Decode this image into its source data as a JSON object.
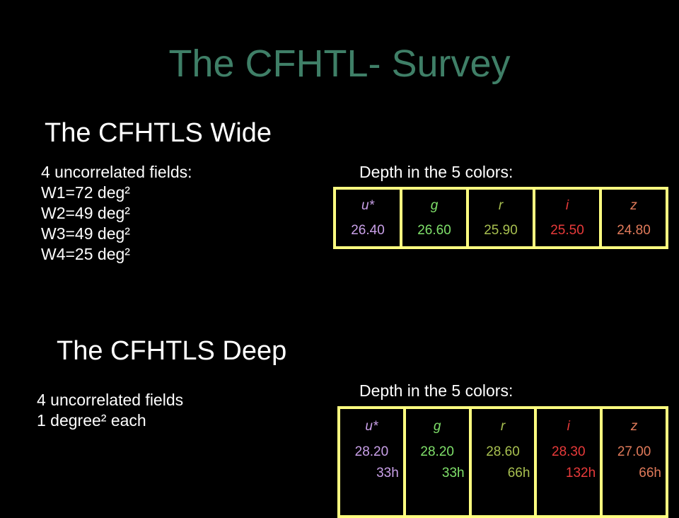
{
  "title": "The CFHTL- Survey",
  "wide": {
    "heading": "The CFHTLS Wide",
    "fields_label": "4 uncorrelated fields:",
    "fields": [
      "W1=72 deg²",
      "W2=49 deg²",
      "W3=49 deg²",
      "W4=25 deg²"
    ],
    "depth_label": "Depth in the 5 colors:",
    "bands": [
      {
        "name": "u*",
        "depth": "26.40",
        "color": "#c9a0e8"
      },
      {
        "name": "g",
        "depth": "26.60",
        "color": "#7fe06a"
      },
      {
        "name": "r",
        "depth": "25.90",
        "color": "#a8c050"
      },
      {
        "name": "i",
        "depth": "25.50",
        "color": "#e83a3a"
      },
      {
        "name": "z",
        "depth": "24.80",
        "color": "#e07a5a"
      }
    ]
  },
  "deep": {
    "heading": "The CFHTLS Deep",
    "fields_line1": "4 uncorrelated fields",
    "fields_line2": "1 degree² each",
    "depth_label": "Depth in the 5 colors:",
    "bands": [
      {
        "name": "u*",
        "depth": "28.20",
        "time": "33h",
        "color": "#c9a0e8"
      },
      {
        "name": "g",
        "depth": "28.20",
        "time": "33h",
        "color": "#7fe06a"
      },
      {
        "name": "r",
        "depth": "28.60",
        "time": "66h",
        "color": "#a8c050"
      },
      {
        "name": "i",
        "depth": "28.30",
        "time": "132h",
        "color": "#e83a3a"
      },
      {
        "name": "z",
        "depth": "27.00",
        "time": "66h",
        "color": "#e07a5a"
      }
    ]
  }
}
